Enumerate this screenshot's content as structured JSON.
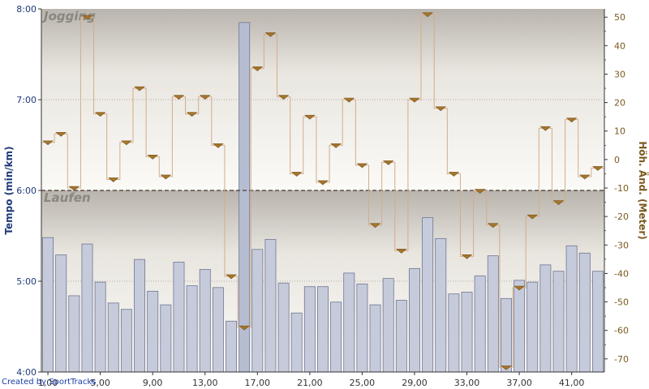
{
  "chart_data": {
    "type": "bar",
    "x_ticks": [
      "1,00",
      "5,00",
      "9,00",
      "13,00",
      "17,00",
      "21,00",
      "25,00",
      "29,00",
      "33,00",
      "37,00",
      "41,00"
    ],
    "y_left": {
      "label": "Tempo (min/km)",
      "range": [
        4.0,
        8.0
      ],
      "ticks": [
        {
          "v": 4.0,
          "t": "4:00"
        },
        {
          "v": 5.0,
          "t": "5:00"
        },
        {
          "v": 6.0,
          "t": "6:00"
        },
        {
          "v": 7.0,
          "t": "7:00"
        },
        {
          "v": 8.0,
          "t": "8:00"
        }
      ]
    },
    "y_right": {
      "label": "Höh. Änd. (Meter)",
      "range": [
        -74.6,
        52.9
      ],
      "ticks": [
        50,
        40,
        30,
        20,
        10,
        0,
        -10,
        -20,
        -30,
        -40,
        -50,
        -60,
        -70
      ]
    },
    "zones": [
      {
        "name": "Jogging",
        "from": 6.0,
        "to": 8.0
      },
      {
        "name": "Laufen",
        "from": 4.0,
        "to": 6.0
      }
    ],
    "threshold": 6.0,
    "series": [
      {
        "name": "Tempo",
        "values": [
          5.48,
          5.29,
          4.84,
          5.41,
          4.99,
          4.76,
          4.69,
          5.24,
          4.89,
          4.74,
          5.21,
          4.95,
          5.13,
          4.93,
          4.56,
          7.85,
          5.35,
          5.46,
          4.98,
          4.65,
          4.94,
          4.94,
          4.77,
          5.09,
          4.97,
          4.74,
          5.03,
          4.79,
          5.14,
          5.7,
          5.47,
          4.86,
          4.88,
          5.06,
          5.28,
          4.81,
          5.01,
          4.99,
          5.18,
          5.11,
          5.39,
          5.31,
          5.11
        ]
      },
      {
        "name": "Höh. Änd.",
        "values": [
          6,
          9,
          -10,
          50,
          16,
          -7,
          6,
          25,
          1,
          -6,
          22,
          16,
          22,
          5,
          -41,
          -59,
          32,
          44,
          22,
          -5,
          15,
          -8,
          5,
          21,
          -2,
          -23,
          -1,
          -32,
          21,
          51,
          18,
          -5,
          -34,
          -11,
          -23,
          -73,
          -45,
          -20,
          11,
          -15,
          14,
          -6,
          -3
        ]
      }
    ]
  },
  "credit": "Created by SportTracks"
}
